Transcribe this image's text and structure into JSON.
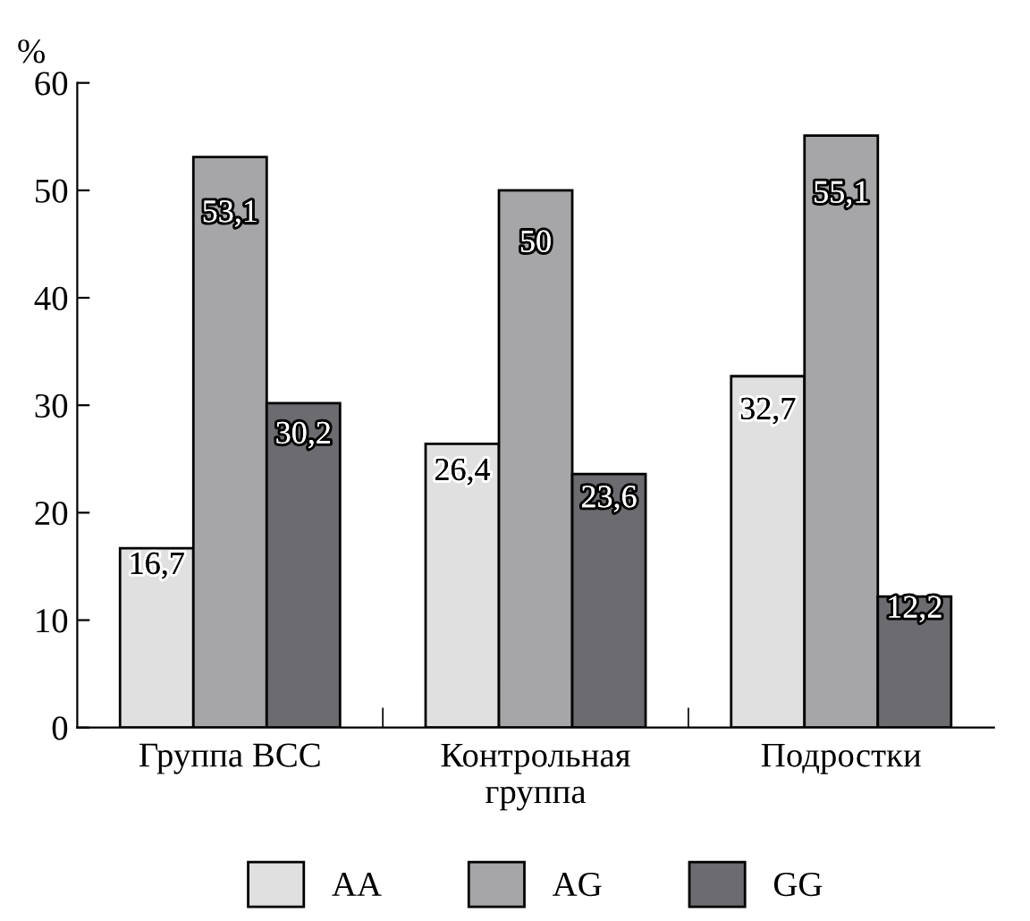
{
  "chart_data": {
    "type": "bar",
    "ylabel": "%",
    "categories": [
      "Группа ВСС",
      "Контрольная\nгруппа",
      "Подростки"
    ],
    "series": [
      {
        "name": "AA",
        "color": "#e0e0e0",
        "values": [
          16.7,
          26.4,
          32.7
        ],
        "value_labels": [
          "16,7",
          "26,4",
          "32,7"
        ]
      },
      {
        "name": "AG",
        "color": "#a6a6a8",
        "values": [
          53.1,
          50,
          55.1
        ],
        "value_labels": [
          "53,1",
          "50",
          "55,1"
        ]
      },
      {
        "name": "GG",
        "color": "#6b6b70",
        "values": [
          30.2,
          23.6,
          12.2
        ],
        "value_labels": [
          "30,2",
          "23,6",
          "12,2"
        ]
      }
    ],
    "ylim": [
      0,
      60
    ],
    "yticks": [
      0,
      10,
      20,
      30,
      40,
      50,
      60
    ],
    "grid": false,
    "legend": "bottom"
  }
}
